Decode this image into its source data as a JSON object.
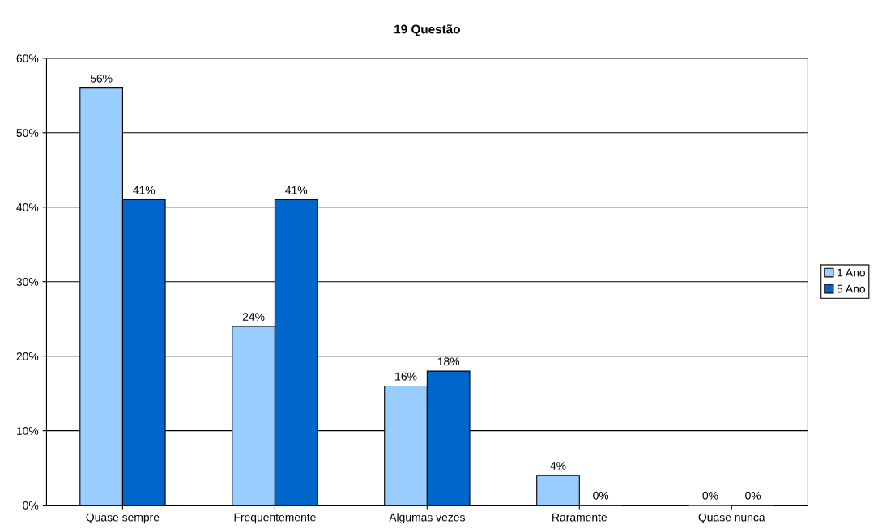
{
  "chart_data": {
    "type": "bar",
    "title": "19 Questão",
    "categories": [
      "Quase sempre",
      "Frequentemente",
      "Algumas vezes",
      "Raramente",
      "Quase nunca"
    ],
    "series": [
      {
        "name": "1 Ano",
        "color": "#99ccff",
        "values": [
          56,
          24,
          16,
          4,
          0
        ],
        "value_labels": [
          "56%",
          "24%",
          "16%",
          "4%",
          "0%"
        ]
      },
      {
        "name": "5 Ano",
        "color": "#0066cc",
        "values": [
          41,
          41,
          18,
          0,
          0
        ],
        "value_labels": [
          "41%",
          "41%",
          "18%",
          "0%",
          "0%"
        ]
      }
    ],
    "ylim": [
      0,
      60
    ],
    "yticks": [
      {
        "value": 0,
        "label": "0%"
      },
      {
        "value": 10,
        "label": "10%"
      },
      {
        "value": 20,
        "label": "20%"
      },
      {
        "value": 30,
        "label": "30%"
      },
      {
        "value": 40,
        "label": "40%"
      },
      {
        "value": 50,
        "label": "50%"
      },
      {
        "value": 60,
        "label": "60%"
      }
    ],
    "grid": "y",
    "legend": "right"
  }
}
